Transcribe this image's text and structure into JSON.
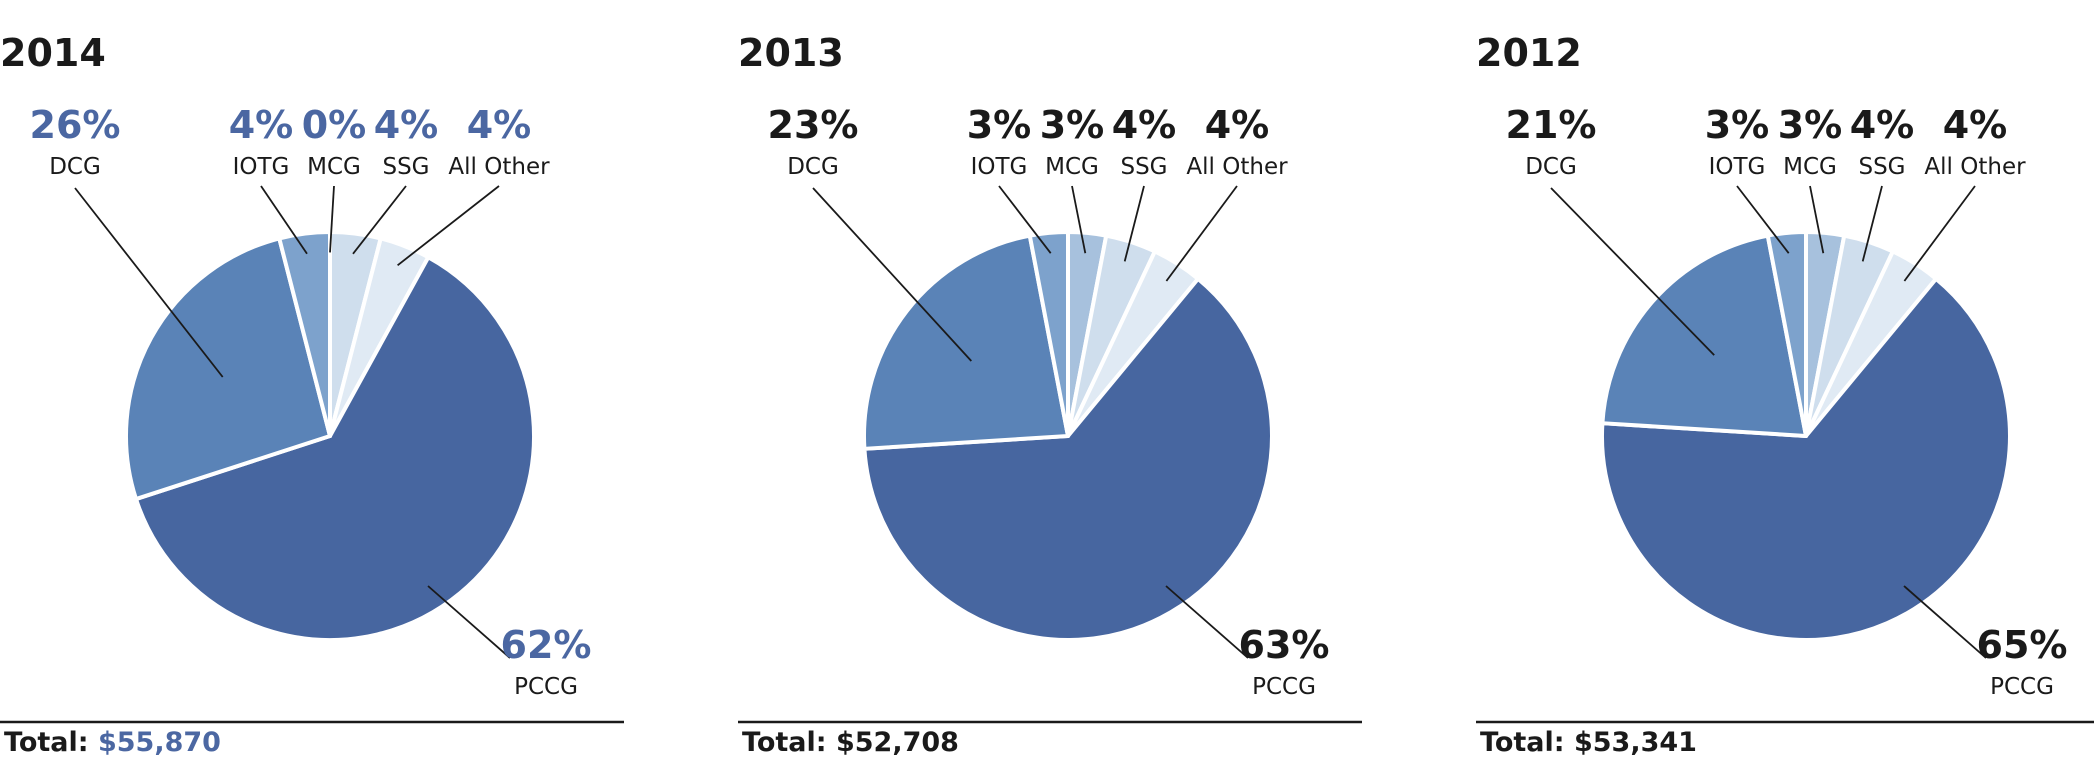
{
  "colors": {
    "PCCG": "#4766a0",
    "DCG": "#5a83b7",
    "IOTG": "#7da2cc",
    "MCG": "#a7c1dd",
    "SSG": "#cfdeed",
    "All Other": "#e0eaf4",
    "highlight_text": "#4b67a2",
    "dark_text": "#1a1a1a"
  },
  "chart_data": [
    {
      "type": "pie",
      "title": "2014",
      "slices": [
        {
          "name": "PCCG",
          "value": 62,
          "label": "62%"
        },
        {
          "name": "DCG",
          "value": 26,
          "label": "26%"
        },
        {
          "name": "IOTG",
          "value": 4,
          "label": "4%"
        },
        {
          "name": "MCG",
          "value": 0,
          "label": "0%"
        },
        {
          "name": "SSG",
          "value": 4,
          "label": "4%"
        },
        {
          "name": "All Other",
          "value": 4,
          "label": "4%"
        }
      ],
      "total_label": "Total:",
      "total_value": "$55,870",
      "highlight": true
    },
    {
      "type": "pie",
      "title": "2013",
      "slices": [
        {
          "name": "PCCG",
          "value": 63,
          "label": "63%"
        },
        {
          "name": "DCG",
          "value": 23,
          "label": "23%"
        },
        {
          "name": "IOTG",
          "value": 3,
          "label": "3%"
        },
        {
          "name": "MCG",
          "value": 3,
          "label": "3%"
        },
        {
          "name": "SSG",
          "value": 4,
          "label": "4%"
        },
        {
          "name": "All Other",
          "value": 4,
          "label": "4%"
        }
      ],
      "total_label": "Total:",
      "total_value": "$52,708",
      "highlight": false
    },
    {
      "type": "pie",
      "title": "2012",
      "slices": [
        {
          "name": "PCCG",
          "value": 65,
          "label": "65%"
        },
        {
          "name": "DCG",
          "value": 21,
          "label": "21%"
        },
        {
          "name": "IOTG",
          "value": 3,
          "label": "3%"
        },
        {
          "name": "MCG",
          "value": 3,
          "label": "3%"
        },
        {
          "name": "SSG",
          "value": 4,
          "label": "4%"
        },
        {
          "name": "All Other",
          "value": 4,
          "label": "4%"
        }
      ],
      "total_label": "Total:",
      "total_value": "$53,341",
      "highlight": false
    }
  ]
}
